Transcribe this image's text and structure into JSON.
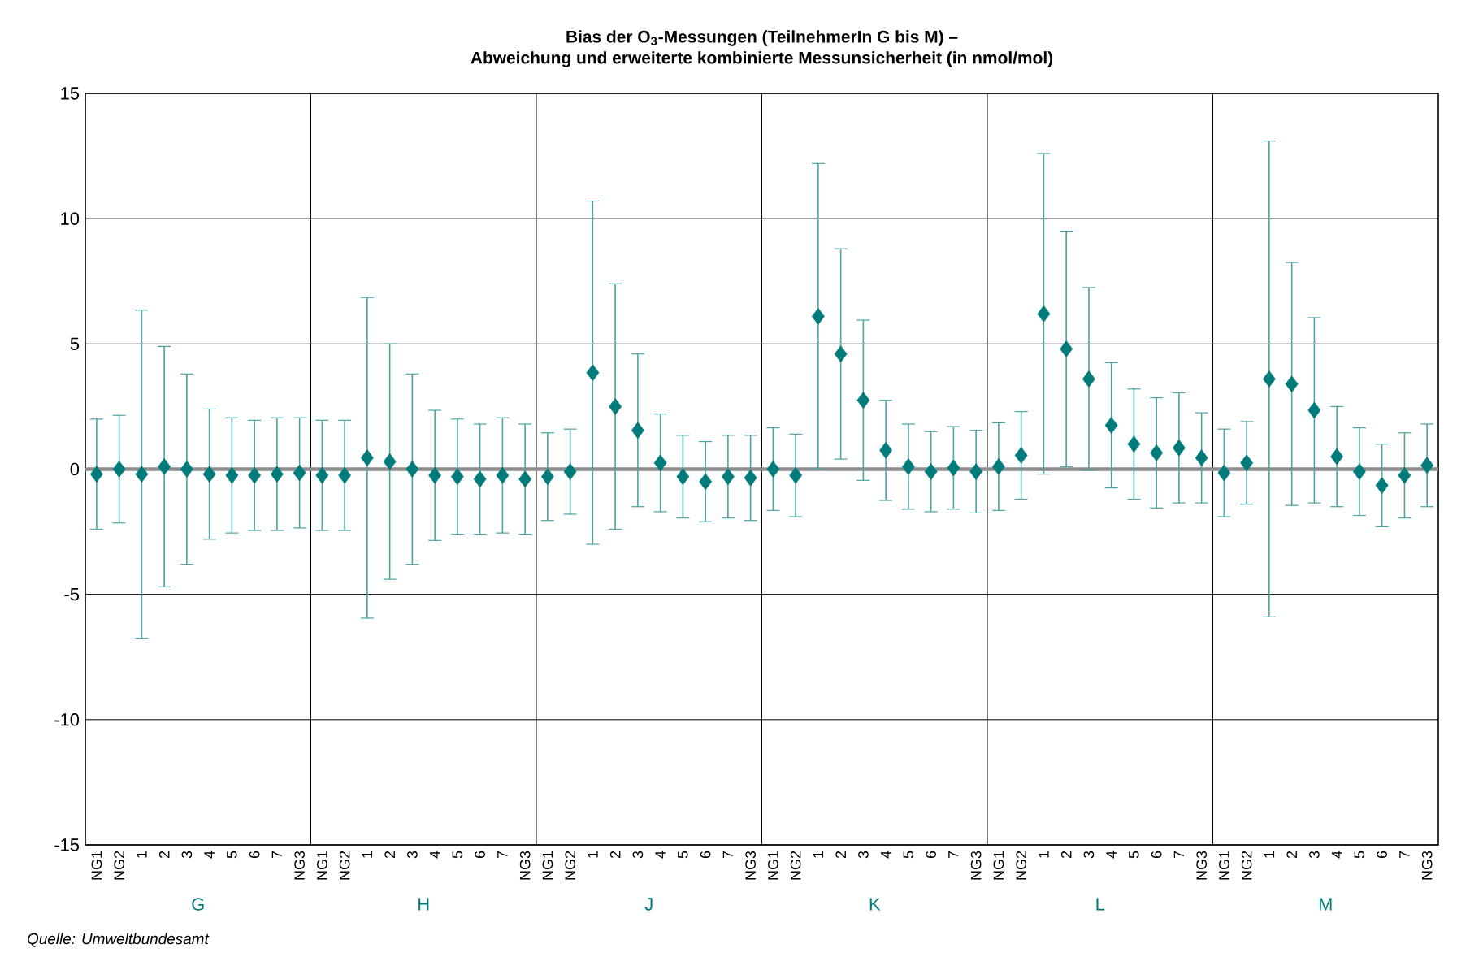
{
  "chart_data": {
    "type": "scatter",
    "title": "Bias der O$_{3}$-Messungen (TeilnehmerIn G bis M) –",
    "subtitle": "Abweichung und erweiterte kombinierte Messunsicherheit (in nmol/mol)",
    "categories": [
      "NG1",
      "NG2",
      "1",
      "2",
      "3",
      "4",
      "5",
      "6",
      "7",
      "NG3",
      "NG1",
      "NG2",
      "1",
      "2",
      "3",
      "4",
      "5",
      "6",
      "7",
      "NG3",
      "NG1",
      "NG2",
      "1",
      "2",
      "3",
      "4",
      "5",
      "6",
      "7",
      "NG3",
      "NG1",
      "NG2",
      "1",
      "2",
      "3",
      "4",
      "5",
      "6",
      "7",
      "NG3",
      "NG1",
      "NG2",
      "1",
      "2",
      "3",
      "4",
      "5",
      "6",
      "7",
      "NG3",
      "NG1",
      "NG2",
      "1",
      "2",
      "3",
      "4",
      "5",
      "6",
      "7",
      "NG3"
    ],
    "series": [
      {
        "color": "#007b7b",
        "values": [
          -0.2,
          0.0,
          -0.2,
          0.1,
          0.0,
          -0.2,
          -0.25,
          -0.25,
          -0.2,
          -0.15,
          -0.25,
          -0.25,
          0.45,
          0.3,
          0.0,
          -0.25,
          -0.3,
          -0.4,
          -0.25,
          -0.4,
          -0.3,
          -0.1,
          3.85,
          2.5,
          1.55,
          0.25,
          -0.3,
          -0.5,
          -0.3,
          -0.35,
          0.0,
          -0.25,
          6.1,
          4.6,
          2.75,
          0.75,
          0.1,
          -0.1,
          0.05,
          -0.1,
          0.1,
          0.55,
          6.2,
          4.8,
          3.6,
          1.75,
          1.0,
          0.65,
          0.85,
          0.45,
          -0.15,
          0.25,
          3.6,
          3.4,
          2.35,
          0.5,
          -0.1,
          -0.65,
          -0.25,
          0.15
        ],
        "errors": [
          2.2,
          2.15,
          6.55,
          4.8,
          3.8,
          2.6,
          2.3,
          2.2,
          2.25,
          2.2,
          2.2,
          2.2,
          6.4,
          4.7,
          3.8,
          2.6,
          2.3,
          2.2,
          2.3,
          2.2,
          1.75,
          1.7,
          6.85,
          4.9,
          3.05,
          1.95,
          1.65,
          1.6,
          1.65,
          1.7,
          1.65,
          1.65,
          6.1,
          4.2,
          3.2,
          2.0,
          1.7,
          1.6,
          1.65,
          1.65,
          1.75,
          1.75,
          6.4,
          4.7,
          3.65,
          2.5,
          2.2,
          2.2,
          2.2,
          1.8,
          1.75,
          1.65,
          9.5,
          4.85,
          3.7,
          2.0,
          1.75,
          1.65,
          1.7,
          1.65
        ]
      }
    ],
    "marker": "diamond",
    "ylim": [
      -15,
      15
    ],
    "yticks": [
      -15,
      -10,
      -5,
      0,
      5,
      10,
      15
    ],
    "grid": true,
    "ref_lines": [
      {
        "axis": "y",
        "value": 0,
        "color": "#8c8c8c"
      }
    ],
    "annotations": [
      "G",
      "H",
      "J",
      "K",
      "L",
      "M",
      "*Quelle: Umweltbundesamt*"
    ]
  }
}
